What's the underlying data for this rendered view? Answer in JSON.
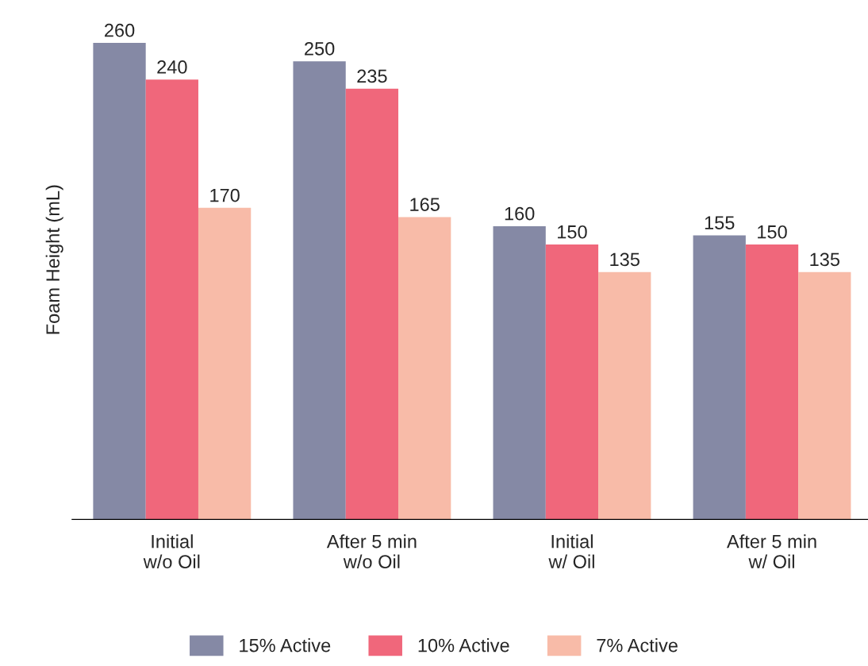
{
  "chart_data": {
    "type": "bar",
    "ylabel": "Foam Height (mL)",
    "categories": [
      "Initial\nw/o Oil",
      "After 5 min\nw/o Oil",
      "Initial\nw/ Oil",
      "After 5 min\nw/ Oil"
    ],
    "series": [
      {
        "name": "15% Active",
        "color": "#8589a5",
        "values": [
          260,
          250,
          160,
          155
        ]
      },
      {
        "name": "10% Active",
        "color": "#f0677b",
        "values": [
          240,
          235,
          150,
          150
        ]
      },
      {
        "name": "7% Active",
        "color": "#f8bba8",
        "values": [
          170,
          165,
          135,
          135
        ]
      }
    ],
    "data_labels": true,
    "legend": "bottom",
    "grid": false,
    "tick_labels": "x"
  }
}
